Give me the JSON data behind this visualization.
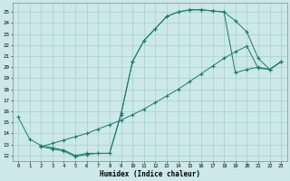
{
  "line1_x": [
    0,
    1,
    2,
    3,
    4,
    5,
    6,
    7,
    8,
    9,
    10,
    11,
    12,
    13,
    14,
    15,
    16,
    17,
    18,
    19,
    20,
    21,
    22,
    23
  ],
  "line1_y": [
    15.5,
    13.5,
    12.9,
    12.7,
    12.5,
    12.0,
    12.2,
    12.2,
    12.2,
    15.7,
    20.5,
    22.4,
    23.5,
    24.6,
    25.0,
    25.2,
    25.2,
    25.1,
    25.0,
    24.2,
    23.2,
    20.8,
    19.8,
    20.5
  ],
  "line2_x": [
    2,
    3,
    4,
    5,
    6,
    7,
    8,
    9,
    10,
    11,
    12,
    13,
    14,
    15,
    16,
    17,
    18,
    19,
    20,
    21,
    22,
    23
  ],
  "line2_y": [
    12.8,
    13.1,
    13.4,
    13.7,
    14.0,
    14.4,
    14.8,
    15.2,
    15.7,
    16.2,
    16.8,
    17.4,
    18.0,
    18.7,
    19.4,
    20.1,
    20.8,
    21.4,
    21.9,
    19.9,
    19.8,
    20.5
  ],
  "line3_x": [
    2,
    3,
    4,
    5,
    6,
    7,
    8,
    9,
    10,
    11,
    12,
    13,
    14,
    15,
    16,
    17,
    18,
    19,
    20,
    21,
    22,
    23
  ],
  "line3_y": [
    12.8,
    12.6,
    12.4,
    11.9,
    12.1,
    12.2,
    12.2,
    15.8,
    20.5,
    22.4,
    23.5,
    24.6,
    25.0,
    25.2,
    25.2,
    25.1,
    25.0,
    19.5,
    19.8,
    20.0,
    19.8,
    20.5
  ],
  "color": "#1a7a6e",
  "bg_color": "#cce8e8",
  "grid_color": "#aacfcf",
  "xlabel": "Humidex (Indice chaleur)",
  "xlim": [
    -0.5,
    23.5
  ],
  "ylim": [
    11.5,
    25.8
  ],
  "yticks": [
    12,
    13,
    14,
    15,
    16,
    17,
    18,
    19,
    20,
    21,
    22,
    23,
    24,
    25
  ],
  "xticks": [
    0,
    1,
    2,
    3,
    4,
    5,
    6,
    7,
    8,
    9,
    10,
    11,
    12,
    13,
    14,
    15,
    16,
    17,
    18,
    19,
    20,
    21,
    22,
    23
  ]
}
